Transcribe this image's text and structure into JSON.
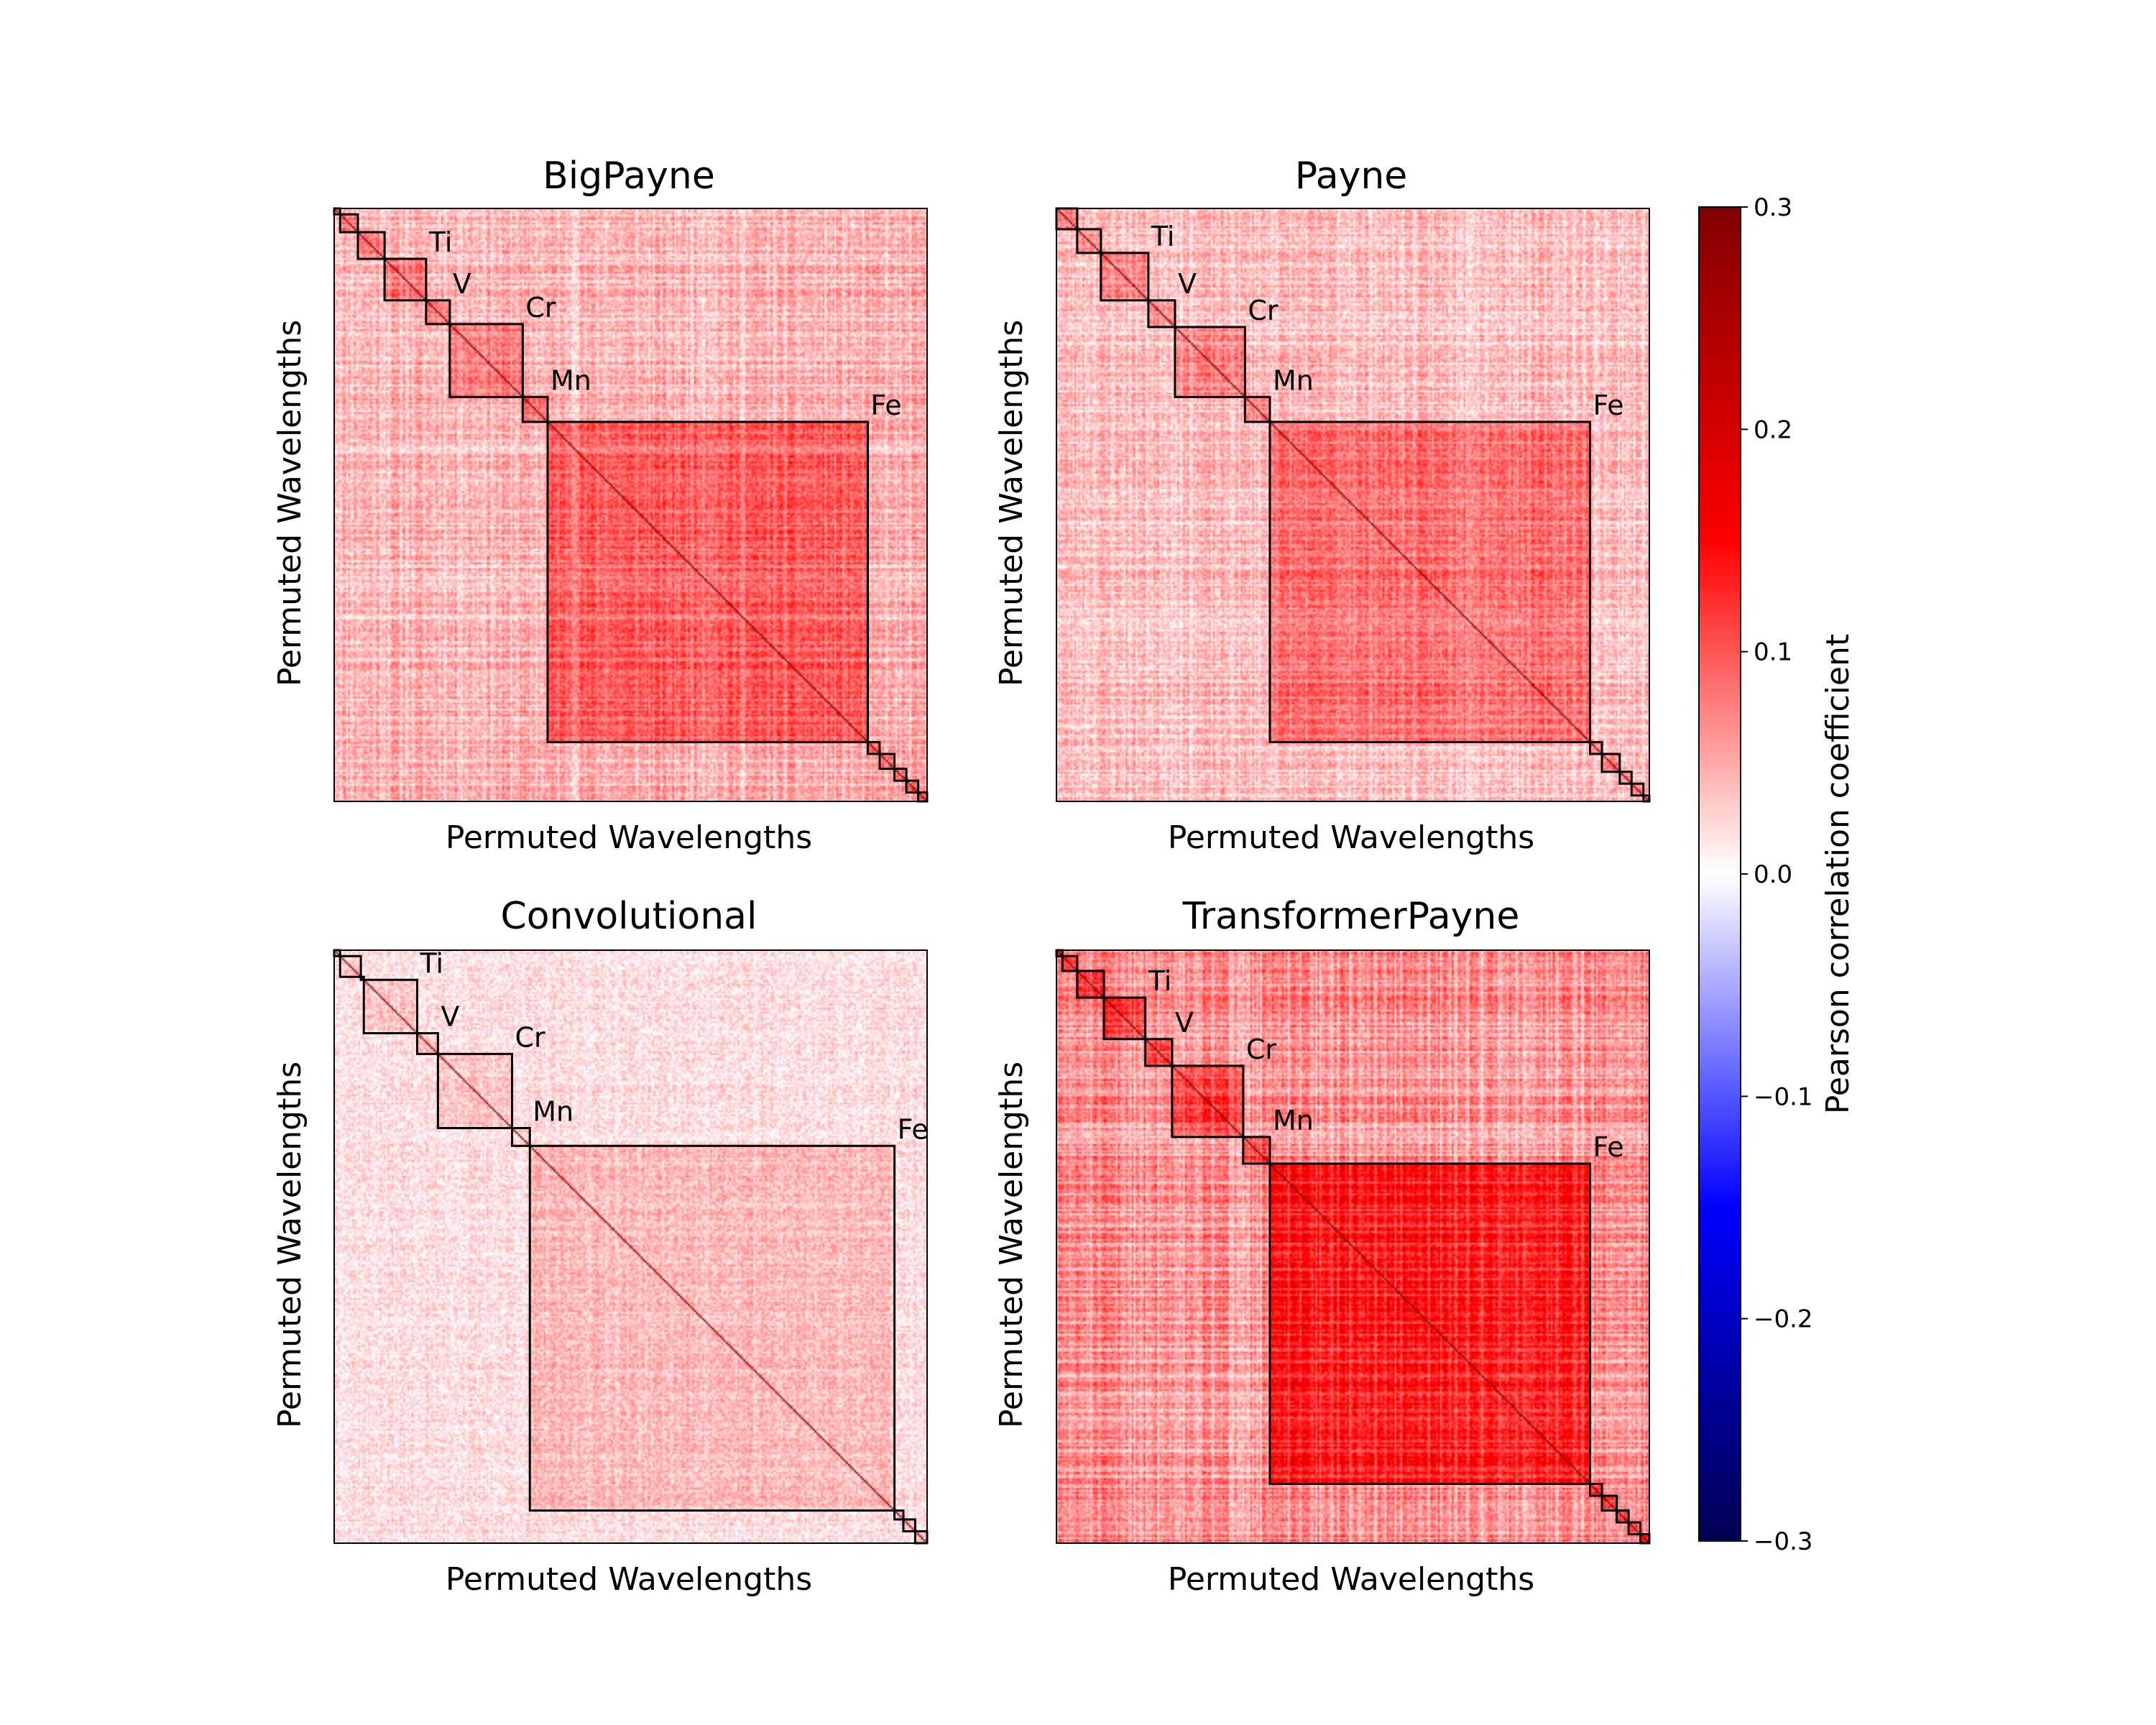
{
  "chart_data": [
    {
      "type": "heatmap",
      "title": "BigPayne",
      "xlabel": "Permuted Wavelengths",
      "ylabel": "Permuted Wavelengths",
      "intensity": 0.5,
      "seed": 11,
      "blocks": [
        {
          "label": "",
          "start": 0.0,
          "end": 0.01
        },
        {
          "label": "",
          "start": 0.01,
          "end": 0.04
        },
        {
          "label": "",
          "start": 0.04,
          "end": 0.085
        },
        {
          "label": "Ti",
          "start": 0.085,
          "end": 0.155
        },
        {
          "label": "V",
          "start": 0.155,
          "end": 0.195
        },
        {
          "label": "Cr",
          "start": 0.195,
          "end": 0.318
        },
        {
          "label": "Mn",
          "start": 0.318,
          "end": 0.36
        },
        {
          "label": "Fe",
          "start": 0.36,
          "end": 0.9
        },
        {
          "label": "",
          "start": 0.9,
          "end": 0.92
        },
        {
          "label": "",
          "start": 0.92,
          "end": 0.945
        },
        {
          "label": "",
          "start": 0.945,
          "end": 0.965
        },
        {
          "label": "",
          "start": 0.965,
          "end": 0.985
        },
        {
          "label": "",
          "start": 0.985,
          "end": 1.0
        }
      ]
    },
    {
      "type": "heatmap",
      "title": "Payne",
      "xlabel": "Permuted Wavelengths",
      "ylabel": "Permuted Wavelengths",
      "intensity": 0.45,
      "seed": 23,
      "blocks": [
        {
          "label": "",
          "start": 0.0,
          "end": 0.035
        },
        {
          "label": "",
          "start": 0.035,
          "end": 0.075
        },
        {
          "label": "Ti",
          "start": 0.075,
          "end": 0.155
        },
        {
          "label": "V",
          "start": 0.155,
          "end": 0.2
        },
        {
          "label": "Cr",
          "start": 0.2,
          "end": 0.318
        },
        {
          "label": "Mn",
          "start": 0.318,
          "end": 0.36
        },
        {
          "label": "Fe",
          "start": 0.36,
          "end": 0.9
        },
        {
          "label": "",
          "start": 0.9,
          "end": 0.92
        },
        {
          "label": "",
          "start": 0.92,
          "end": 0.95
        },
        {
          "label": "",
          "start": 0.95,
          "end": 0.97
        },
        {
          "label": "",
          "start": 0.97,
          "end": 0.99
        },
        {
          "label": "",
          "start": 0.99,
          "end": 1.0
        }
      ]
    },
    {
      "type": "heatmap",
      "title": "Convolutional",
      "xlabel": "Permuted Wavelengths",
      "ylabel": "Permuted Wavelengths",
      "intensity": 0.22,
      "seed": 37,
      "blocks": [
        {
          "label": "",
          "start": 0.0,
          "end": 0.01
        },
        {
          "label": "",
          "start": 0.01,
          "end": 0.045
        },
        {
          "label": "",
          "start": 0.045,
          "end": 0.05
        },
        {
          "label": "Ti",
          "start": 0.05,
          "end": 0.14
        },
        {
          "label": "V",
          "start": 0.14,
          "end": 0.175
        },
        {
          "label": "Cr",
          "start": 0.175,
          "end": 0.3
        },
        {
          "label": "Mn",
          "start": 0.3,
          "end": 0.33
        },
        {
          "label": "Fe",
          "start": 0.33,
          "end": 0.945
        },
        {
          "label": "",
          "start": 0.945,
          "end": 0.96
        },
        {
          "label": "",
          "start": 0.96,
          "end": 0.98
        },
        {
          "label": "",
          "start": 0.98,
          "end": 1.0
        }
      ]
    },
    {
      "type": "heatmap",
      "title": "TransformerPayne",
      "xlabel": "Permuted Wavelengths",
      "ylabel": "Permuted Wavelengths",
      "intensity": 0.72,
      "seed": 51,
      "blocks": [
        {
          "label": "",
          "start": 0.0,
          "end": 0.01
        },
        {
          "label": "",
          "start": 0.01,
          "end": 0.035
        },
        {
          "label": "",
          "start": 0.035,
          "end": 0.08
        },
        {
          "label": "Ti",
          "start": 0.08,
          "end": 0.15
        },
        {
          "label": "V",
          "start": 0.15,
          "end": 0.195
        },
        {
          "label": "Cr",
          "start": 0.195,
          "end": 0.315
        },
        {
          "label": "Mn",
          "start": 0.315,
          "end": 0.36
        },
        {
          "label": "Fe",
          "start": 0.36,
          "end": 0.9
        },
        {
          "label": "",
          "start": 0.9,
          "end": 0.92
        },
        {
          "label": "",
          "start": 0.92,
          "end": 0.945
        },
        {
          "label": "",
          "start": 0.945,
          "end": 0.965
        },
        {
          "label": "",
          "start": 0.965,
          "end": 0.985
        },
        {
          "label": "",
          "start": 0.985,
          "end": 1.0
        }
      ]
    }
  ],
  "colorbar": {
    "label": "Pearson correlation coefficient",
    "colormap": "seismic",
    "vmin": -0.3,
    "vmax": 0.3,
    "ticks": [
      0.3,
      0.2,
      0.1,
      0.0,
      -0.1,
      -0.2,
      -0.3
    ],
    "tick_labels": [
      "0.3",
      "0.2",
      "0.1",
      "0.0",
      "−0.1",
      "−0.2",
      "−0.3"
    ],
    "colors": [
      "#000050",
      "#0000ff",
      "#ffffff",
      "#ff0000",
      "#800000"
    ]
  }
}
